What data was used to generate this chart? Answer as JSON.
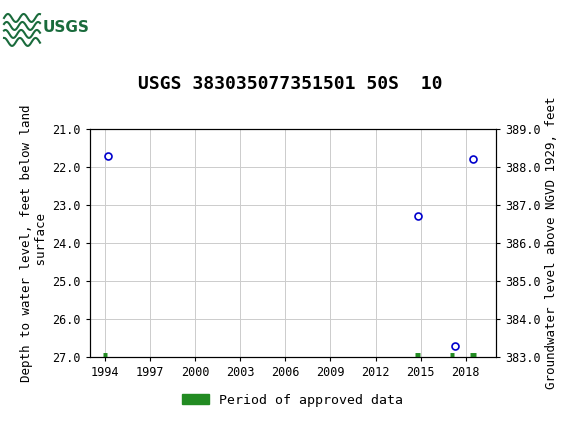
{
  "title": "USGS 383035077351501 50S  10",
  "ylabel_left": "Depth to water level, feet below land\n surface",
  "ylabel_right": "Groundwater level above NGVD 1929, feet",
  "ylim_left": [
    27.0,
    21.0
  ],
  "ylim_right": [
    383.0,
    389.0
  ],
  "xlim": [
    1993,
    2020
  ],
  "xticks": [
    1994,
    1997,
    2000,
    2003,
    2006,
    2009,
    2012,
    2015,
    2018
  ],
  "yticks_left": [
    21.0,
    22.0,
    23.0,
    24.0,
    25.0,
    26.0,
    27.0
  ],
  "yticks_right": [
    383.0,
    384.0,
    385.0,
    386.0,
    387.0,
    388.0,
    389.0
  ],
  "data_points": [
    {
      "year": 1994.2,
      "depth": 21.7
    },
    {
      "year": 2014.8,
      "depth": 23.3
    },
    {
      "year": 2017.3,
      "depth": 26.7
    },
    {
      "year": 2018.5,
      "depth": 21.8
    }
  ],
  "green_bar_segments": [
    {
      "x_start": 1993.85,
      "x_end": 1994.15
    },
    {
      "x_start": 2014.65,
      "x_end": 2014.95
    },
    {
      "x_start": 2016.95,
      "x_end": 2017.2
    },
    {
      "x_start": 2018.3,
      "x_end": 2018.7
    }
  ],
  "point_color": "#0000cc",
  "point_marker": "o",
  "point_size": 5,
  "grid_color": "#cccccc",
  "background_color": "#ffffff",
  "header_color": "#1a6b3c",
  "title_fontsize": 13,
  "axis_fontsize": 9,
  "tick_fontsize": 8.5,
  "legend_label": "Period of approved data",
  "legend_color": "#228B22"
}
